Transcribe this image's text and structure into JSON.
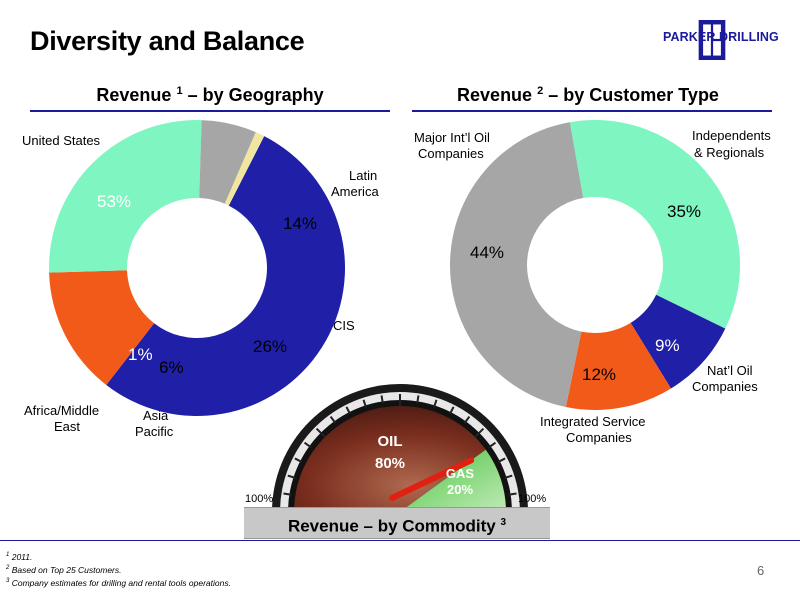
{
  "header": {
    "title": "Diversity and Balance",
    "logo_text": "PARKER DRILLING"
  },
  "chart_data": [
    {
      "type": "pie",
      "title": "Revenue",
      "title_note": "1",
      "title_suffix": "– by Geography",
      "series": [
        {
          "name": "United States",
          "value": 53,
          "label": "53%",
          "color": "#1f1fa8"
        },
        {
          "name": "Latin America",
          "value": 14,
          "label": "14%",
          "color": "#f25a1a"
        },
        {
          "name": "CIS",
          "value": 26,
          "label": "26%",
          "color": "#7ff5c2"
        },
        {
          "name": "Asia Pacific",
          "value": 6,
          "label": "6%",
          "color": "#a6a6a6"
        },
        {
          "name": "Africa/Middle East",
          "value": 1,
          "label": "1%",
          "color": "#f0e6a0"
        }
      ]
    },
    {
      "type": "pie",
      "title": "Revenue",
      "title_note": "2",
      "title_suffix": "– by Customer Type",
      "series": [
        {
          "name": "Independents & Regionals",
          "value": 35,
          "label": "35%",
          "color": "#7ff5c2"
        },
        {
          "name": "Nat’l Oil Companies",
          "value": 9,
          "label": "9%",
          "color": "#1f1fa8"
        },
        {
          "name": "Integrated Service Companies",
          "value": 12,
          "label": "12%",
          "color": "#f25a1a"
        },
        {
          "name": "Major Int’l Oil Companies",
          "value": 44,
          "label": "44%",
          "color": "#a6a6a6"
        }
      ]
    },
    {
      "type": "gauge",
      "title": "Revenue – by Commodity",
      "title_note": "3",
      "series": [
        {
          "name": "OIL",
          "value": 80,
          "label": "80%"
        },
        {
          "name": "GAS",
          "value": 20,
          "label": "20%"
        }
      ],
      "scale_left": "100%",
      "scale_right": "100%"
    }
  ],
  "labels": {
    "geo": {
      "us": "United States",
      "latam_1": "Latin",
      "latam_2": "America",
      "cis": "CIS",
      "africa_1": "Africa/Middle",
      "africa_2": "East",
      "asia_1": "Asia",
      "asia_2": "Pacific"
    },
    "cust": {
      "major_1": "Major Int’l Oil",
      "major_2": "Companies",
      "ind_1": "Independents",
      "ind_2": "& Regionals",
      "noc_1": "Nat’l Oil",
      "noc_2": "Companies",
      "isc_1": "Integrated Service",
      "isc_2": "Companies"
    }
  },
  "footnotes": [
    {
      "mark": "1",
      "text": "2011."
    },
    {
      "mark": "2",
      "text": "Based on Top 25 Customers."
    },
    {
      "mark": "3",
      "text": "Company estimates for drilling and rental tools operations."
    }
  ],
  "page_number": "6",
  "colors": {
    "accent": "#1a1a9a"
  }
}
